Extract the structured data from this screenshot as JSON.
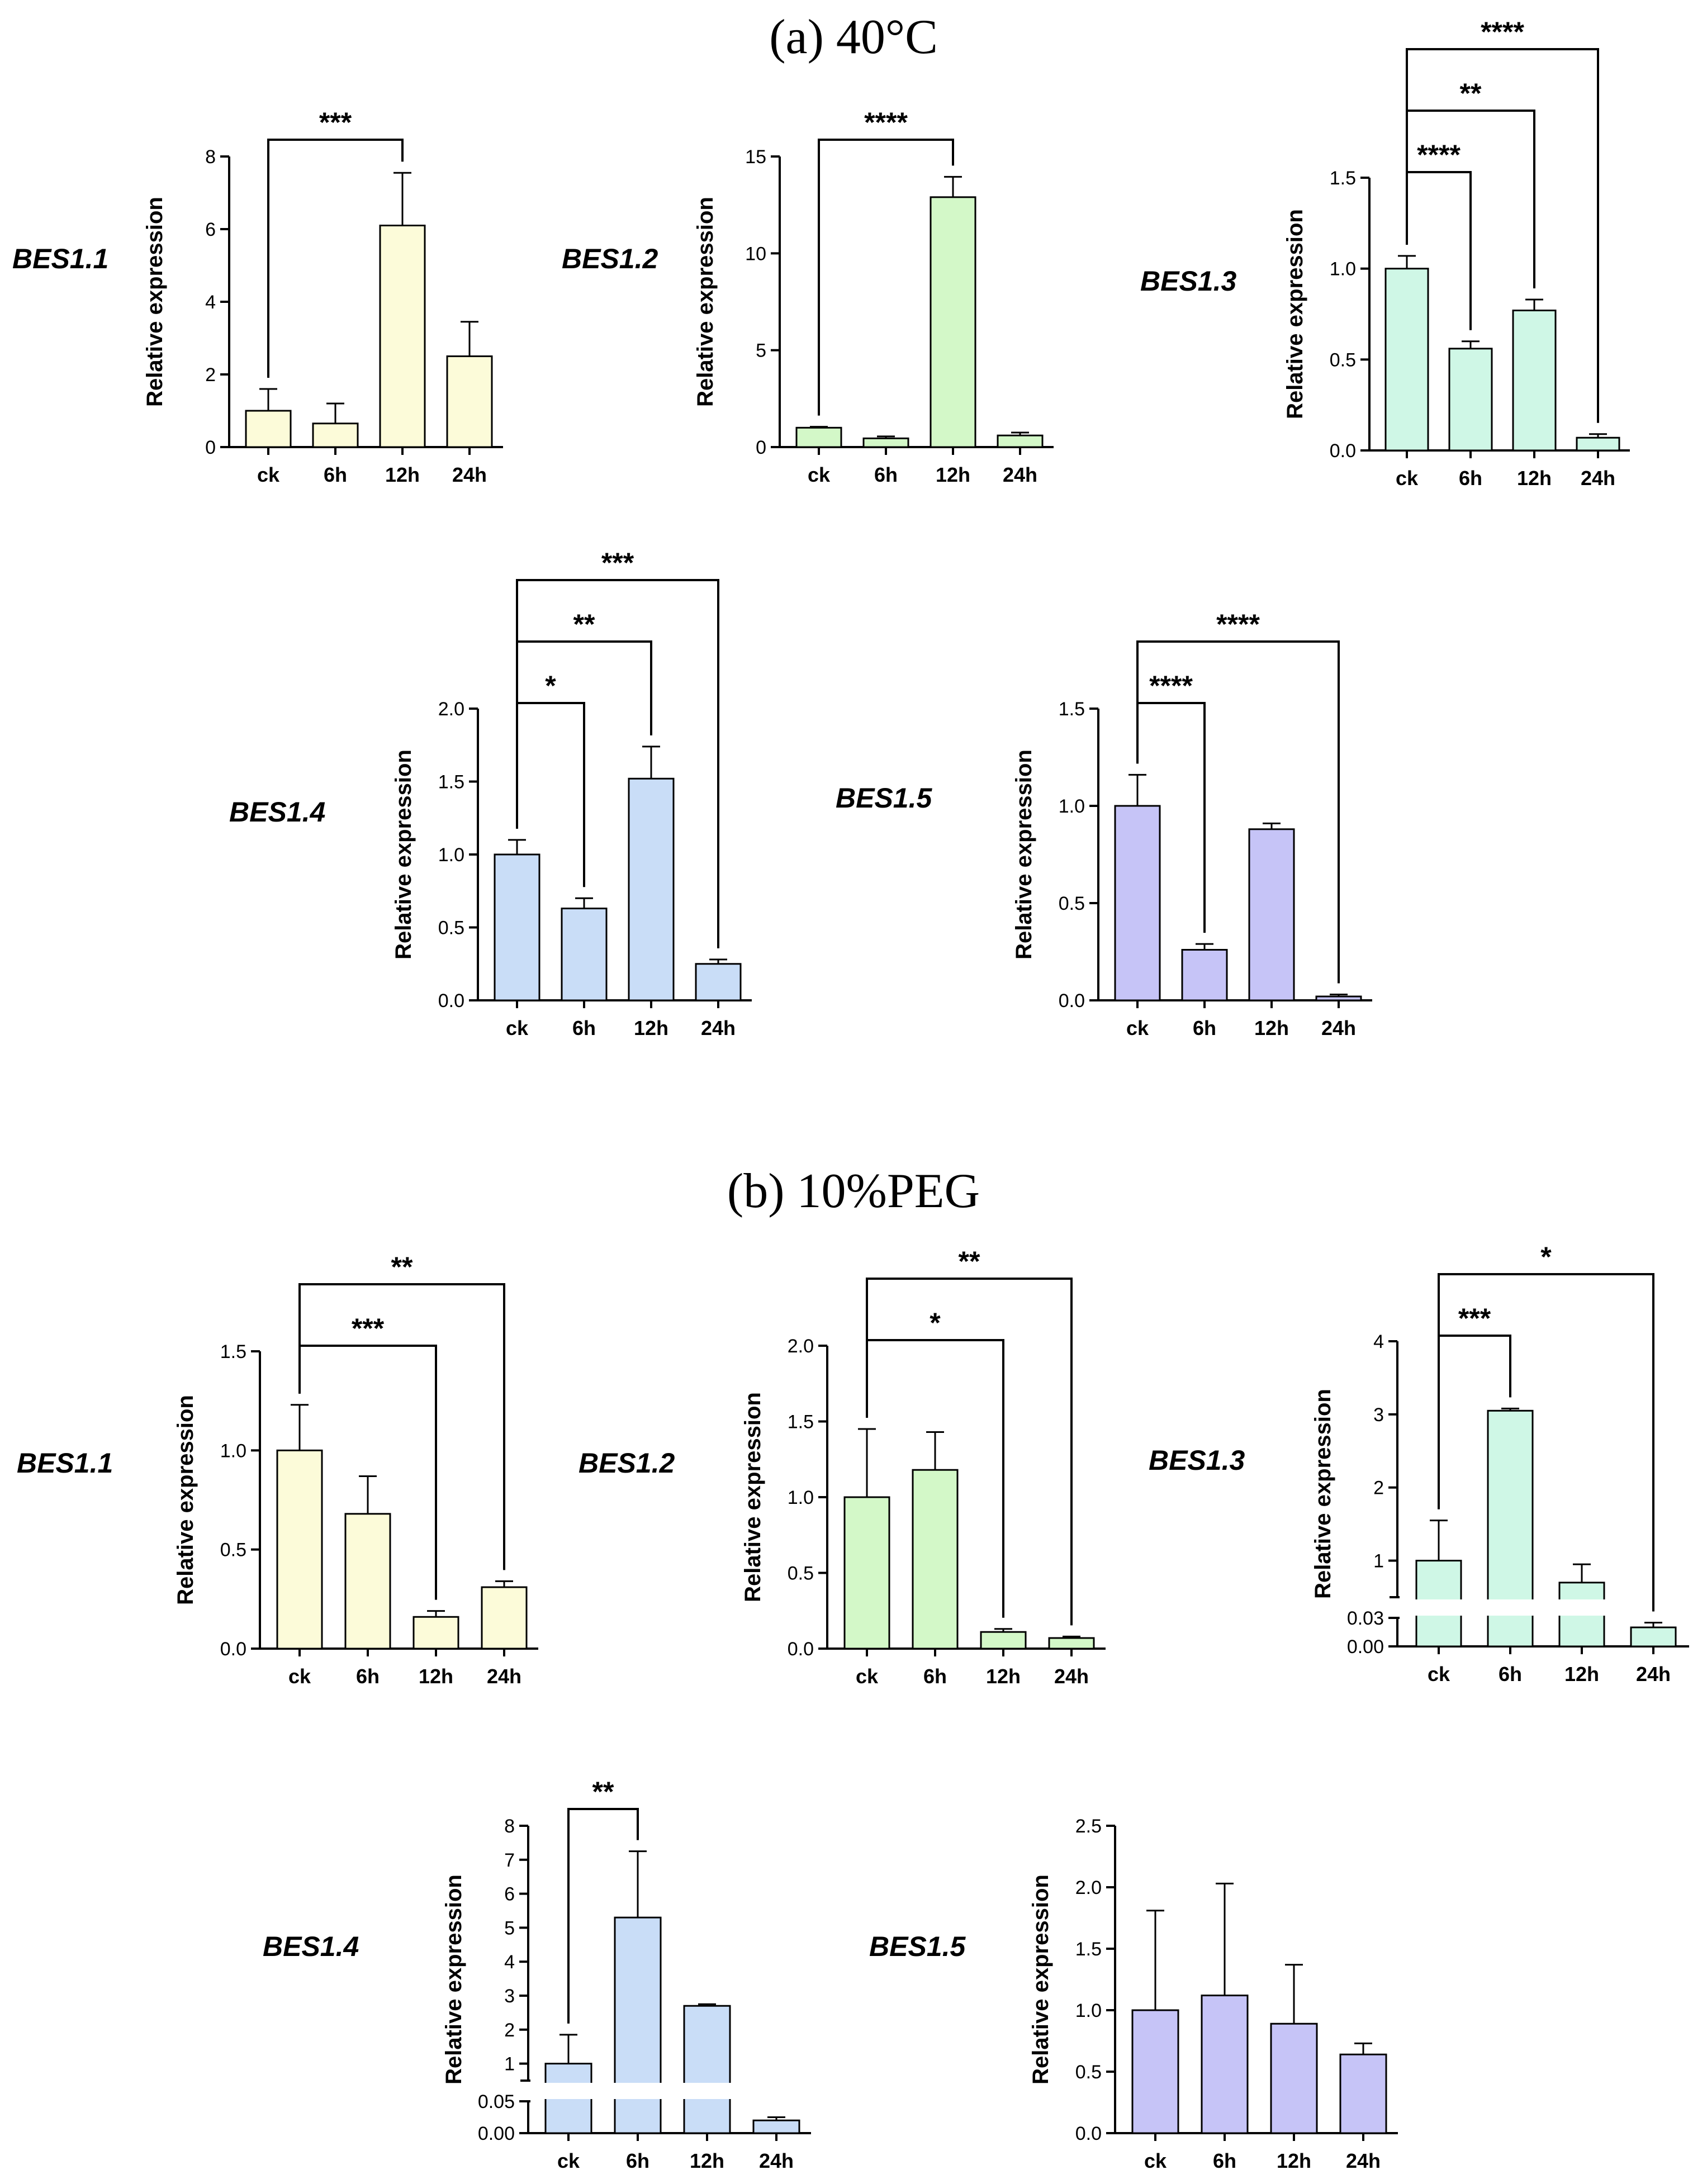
{
  "chart_data": {
    "type": "bar",
    "y_axis_label": "Relative expression",
    "categories": [
      "ck",
      "6h",
      "12h",
      "24h"
    ],
    "sections": [
      {
        "title": "(a) 40°C",
        "panels": [
          {
            "gene": "BES1.1",
            "color": "#FCFBD9",
            "ylim": [
              0,
              8
            ],
            "ticks": [
              "0",
              "2",
              "4",
              "6",
              "8"
            ],
            "values": [
              1.0,
              0.65,
              6.1,
              2.5
            ],
            "errors": [
              0.6,
              0.55,
              1.45,
              0.95
            ],
            "significance": [
              {
                "from": "ck",
                "to": "12h",
                "label": "***"
              }
            ]
          },
          {
            "gene": "BES1.2",
            "color": "#D3F8C8",
            "ylim": [
              0,
              15
            ],
            "ticks": [
              "0",
              "5",
              "10",
              "15"
            ],
            "values": [
              1.0,
              0.45,
              12.9,
              0.6
            ],
            "errors": [
              0.05,
              0.1,
              1.05,
              0.15
            ],
            "significance": [
              {
                "from": "ck",
                "to": "12h",
                "label": "****"
              }
            ]
          },
          {
            "gene": "BES1.3",
            "color": "#CFF7E6",
            "ylim": [
              0,
              1.5
            ],
            "ticks": [
              "0.0",
              "0.5",
              "1.0",
              "1.5"
            ],
            "values": [
              1.0,
              0.56,
              0.77,
              0.07
            ],
            "errors": [
              0.07,
              0.04,
              0.06,
              0.02
            ],
            "significance": [
              {
                "from": "ck",
                "to": "6h",
                "label": "****"
              },
              {
                "from": "ck",
                "to": "12h",
                "label": "**"
              },
              {
                "from": "ck",
                "to": "24h",
                "label": "****"
              }
            ]
          },
          {
            "gene": "BES1.4",
            "color": "#C9DDF7",
            "ylim": [
              0,
              2.0
            ],
            "ticks": [
              "0.0",
              "0.5",
              "1.0",
              "1.5",
              "2.0"
            ],
            "values": [
              1.0,
              0.63,
              1.52,
              0.25
            ],
            "errors": [
              0.1,
              0.07,
              0.22,
              0.03
            ],
            "significance": [
              {
                "from": "ck",
                "to": "6h",
                "label": "*"
              },
              {
                "from": "ck",
                "to": "12h",
                "label": "**"
              },
              {
                "from": "ck",
                "to": "24h",
                "label": "***"
              }
            ]
          },
          {
            "gene": "BES1.5",
            "color": "#C6C4F7",
            "ylim": [
              0,
              1.5
            ],
            "ticks": [
              "0.0",
              "0.5",
              "1.0",
              "1.5"
            ],
            "values": [
              1.0,
              0.26,
              0.88,
              0.02
            ],
            "errors": [
              0.16,
              0.03,
              0.03,
              0.01
            ],
            "significance": [
              {
                "from": "ck",
                "to": "6h",
                "label": "****"
              },
              {
                "from": "ck",
                "to": "24h",
                "label": "****"
              }
            ]
          }
        ]
      },
      {
        "title": "(b) 10%PEG",
        "panels": [
          {
            "gene": "BES1.1",
            "color": "#FCFBD9",
            "ylim": [
              0,
              1.5
            ],
            "ticks": [
              "0.0",
              "0.5",
              "1.0",
              "1.5"
            ],
            "values": [
              1.0,
              0.68,
              0.16,
              0.31
            ],
            "errors": [
              0.23,
              0.19,
              0.03,
              0.03
            ],
            "significance": [
              {
                "from": "ck",
                "to": "12h",
                "label": "***"
              },
              {
                "from": "ck",
                "to": "24h",
                "label": "**"
              }
            ]
          },
          {
            "gene": "BES1.2",
            "color": "#D3F8C8",
            "ylim": [
              0,
              2.0
            ],
            "ticks": [
              "0.0",
              "0.5",
              "1.0",
              "1.5",
              "2.0"
            ],
            "values": [
              1.0,
              1.18,
              0.11,
              0.07
            ],
            "errors": [
              0.45,
              0.25,
              0.02,
              0.01
            ],
            "significance": [
              {
                "from": "ck",
                "to": "12h",
                "label": "*"
              },
              {
                "from": "ck",
                "to": "24h",
                "label": "**"
              }
            ]
          },
          {
            "gene": "BES1.3",
            "color": "#CFF7E6",
            "ylim": [
              0,
              4
            ],
            "ticks": [
              "0.00",
              "0.03",
              "1",
              "2",
              "3",
              "4"
            ],
            "axis_break": [
              0.03,
              0.5
            ],
            "values": [
              1.0,
              3.05,
              0.7,
              0.02
            ],
            "errors": [
              0.55,
              0.03,
              0.25,
              0.005
            ],
            "significance": [
              {
                "from": "ck",
                "to": "6h",
                "label": "***"
              },
              {
                "from": "ck",
                "to": "24h",
                "label": "*"
              }
            ]
          },
          {
            "gene": "BES1.4",
            "color": "#C9DDF7",
            "ylim": [
              0,
              8
            ],
            "ticks": [
              "0.00",
              "0.05",
              "1",
              "2",
              "3",
              "4",
              "5",
              "6",
              "7",
              "8"
            ],
            "axis_break": [
              0.05,
              0.5
            ],
            "values": [
              1.0,
              5.3,
              2.7,
              0.02
            ],
            "errors": [
              0.85,
              1.95,
              0.05,
              0.005
            ],
            "significance": [
              {
                "from": "ck",
                "to": "6h",
                "label": "**"
              }
            ]
          },
          {
            "gene": "BES1.5",
            "color": "#C6C4F7",
            "ylim": [
              0,
              2.5
            ],
            "ticks": [
              "0.0",
              "0.5",
              "1.0",
              "1.5",
              "2.0",
              "2.5"
            ],
            "values": [
              1.0,
              1.12,
              0.89,
              0.64
            ],
            "errors": [
              0.81,
              0.91,
              0.48,
              0.09
            ],
            "significance": []
          }
        ]
      }
    ]
  }
}
